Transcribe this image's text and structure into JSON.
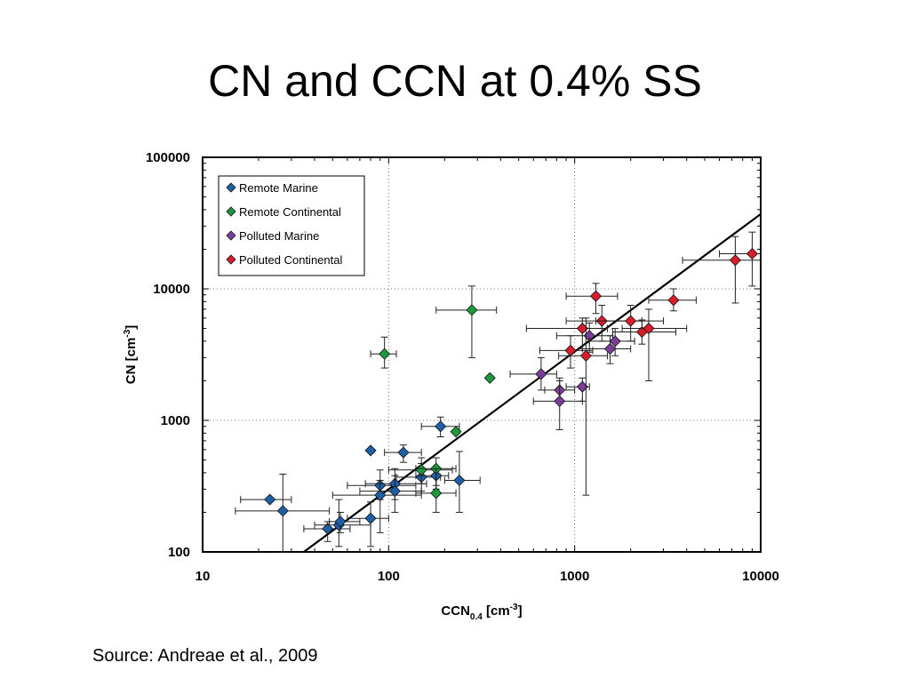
{
  "slide": {
    "title": "CN and CCN at 0.4% SS",
    "source": "Source:  Andreae et al., 2009"
  },
  "chart_data": {
    "type": "scatter",
    "xlabel": "CCN",
    "xlabel_sub": "0.4",
    "xlabel_unit": " [cm",
    "xlabel_sup": "-3",
    "xlabel_end": "]",
    "ylabel": "CN [cm",
    "ylabel_sup": "-3",
    "ylabel_end": "]",
    "xscale": "log",
    "yscale": "log",
    "xlim": [
      10,
      10000
    ],
    "ylim": [
      100,
      100000
    ],
    "x_tick_labels": [
      "10",
      "100",
      "1000",
      "10000"
    ],
    "y_tick_labels": [
      "100",
      "1000",
      "10000",
      "100000"
    ],
    "grid": "dotted at 100 and 1000 (x), 1000 and 10000 (y)",
    "legend_position": "top-left",
    "fit_line": {
      "x": [
        35,
        10000
      ],
      "y": [
        100,
        37000
      ]
    },
    "series": [
      {
        "name": "Remote Marine",
        "color": "#1f5fa8",
        "points": [
          {
            "x": 23,
            "y": 250,
            "xerr": [
              16,
              30
            ],
            "yerr": [
              250,
              250
            ]
          },
          {
            "x": 27,
            "y": 205,
            "xerr": [
              15,
              48
            ],
            "yerr": [
              100,
              390
            ]
          },
          {
            "x": 47,
            "y": 150,
            "xerr": [
              35,
              62
            ],
            "yerr": [
              120,
              170
            ]
          },
          {
            "x": 54,
            "y": 160,
            "xerr": [
              40,
              80
            ],
            "yerr": [
              110,
              250
            ]
          },
          {
            "x": 55,
            "y": 170,
            "xerr": [
              48,
              70
            ],
            "yerr": [
              140,
              200
            ]
          },
          {
            "x": 80,
            "y": 180,
            "xerr": [
              60,
              100
            ],
            "yerr": [
              110,
              240
            ]
          },
          {
            "x": 80,
            "y": 590,
            "xerr": [
              80,
              80
            ],
            "yerr": [
              590,
              590
            ]
          },
          {
            "x": 90,
            "y": 320,
            "xerr": [
              60,
              140
            ],
            "yerr": [
              250,
              420
            ]
          },
          {
            "x": 90,
            "y": 270,
            "xerr": [
              50,
              150
            ],
            "yerr": [
              140,
              350
            ]
          },
          {
            "x": 108,
            "y": 330,
            "xerr": [
              75,
              160
            ],
            "yerr": [
              250,
              430
            ]
          },
          {
            "x": 108,
            "y": 290,
            "xerr": [
              70,
              150
            ],
            "yerr": [
              200,
              380
            ]
          },
          {
            "x": 120,
            "y": 570,
            "xerr": [
              95,
              150
            ],
            "yerr": [
              480,
              650
            ]
          },
          {
            "x": 150,
            "y": 370,
            "xerr": [
              110,
              190
            ],
            "yerr": [
              290,
              470
            ]
          },
          {
            "x": 180,
            "y": 380,
            "xerr": [
              140,
              210
            ],
            "yerr": [
              320,
              430
            ]
          },
          {
            "x": 190,
            "y": 900,
            "xerr": [
              150,
              240
            ],
            "yerr": [
              750,
              1060
            ]
          },
          {
            "x": 240,
            "y": 350,
            "xerr": [
              200,
              310
            ],
            "yerr": [
              200,
              580
            ]
          }
        ]
      },
      {
        "name": "Remote Continental",
        "color": "#1a9a3c",
        "points": [
          {
            "x": 95,
            "y": 3200,
            "xerr": [
              80,
              110
            ],
            "yerr": [
              2500,
              4300
            ]
          },
          {
            "x": 150,
            "y": 420,
            "xerr": [
              100,
              220
            ],
            "yerr": [
              330,
              520
            ]
          },
          {
            "x": 180,
            "y": 430,
            "xerr": [
              140,
              230
            ],
            "yerr": [
              300,
              520
            ]
          },
          {
            "x": 180,
            "y": 280,
            "xerr": [
              140,
              230
            ],
            "yerr": [
              200,
              430
            ]
          },
          {
            "x": 230,
            "y": 820,
            "xerr": [
              230,
              230
            ],
            "yerr": [
              820,
              820
            ]
          },
          {
            "x": 280,
            "y": 6900,
            "xerr": [
              180,
              380
            ],
            "yerr": [
              3000,
              10500
            ]
          },
          {
            "x": 350,
            "y": 2100,
            "xerr": [
              350,
              350
            ],
            "yerr": [
              2100,
              2100
            ]
          }
        ]
      },
      {
        "name": "Polluted Marine",
        "color": "#7a3d9a",
        "points": [
          {
            "x": 660,
            "y": 2250,
            "xerr": [
              450,
              800
            ],
            "yerr": [
              1700,
              3000
            ]
          },
          {
            "x": 830,
            "y": 1700,
            "xerr": [
              690,
              1000
            ],
            "yerr": [
              1400,
              2000
            ]
          },
          {
            "x": 830,
            "y": 1400,
            "xerr": [
              600,
              1100
            ],
            "yerr": [
              850,
              2100
            ]
          },
          {
            "x": 1100,
            "y": 1800,
            "xerr": [
              900,
              1200
            ],
            "yerr": [
              1400,
              2100
            ]
          },
          {
            "x": 1200,
            "y": 4400,
            "xerr": [
              800,
              1600
            ],
            "yerr": [
              3300,
              5500
            ]
          },
          {
            "x": 1550,
            "y": 3500,
            "xerr": [
              1100,
              2000
            ],
            "yerr": [
              2700,
              4400
            ]
          },
          {
            "x": 1650,
            "y": 4000,
            "xerr": [
              1200,
              2100
            ],
            "yerr": [
              3100,
              5000
            ]
          }
        ]
      },
      {
        "name": "Polluted Continental",
        "color": "#d81e2a",
        "points": [
          {
            "x": 950,
            "y": 3400,
            "xerr": [
              650,
              1250
            ],
            "yerr": [
              2500,
              4400
            ]
          },
          {
            "x": 1100,
            "y": 5000,
            "xerr": [
              550,
              1500
            ],
            "yerr": [
              3500,
              6000
            ]
          },
          {
            "x": 1150,
            "y": 3100,
            "xerr": [
              820,
              1500
            ],
            "yerr": [
              270,
              6000
            ]
          },
          {
            "x": 1300,
            "y": 8800,
            "xerr": [
              900,
              1700
            ],
            "yerr": [
              6500,
              11000
            ]
          },
          {
            "x": 1400,
            "y": 5700,
            "xerr": [
              900,
              2300
            ],
            "yerr": [
              4000,
              7500
            ]
          },
          {
            "x": 2000,
            "y": 5700,
            "xerr": [
              1300,
              3000
            ],
            "yerr": [
              4000,
              7500
            ]
          },
          {
            "x": 2300,
            "y": 4700,
            "xerr": [
              1600,
              3500
            ],
            "yerr": [
              3800,
              5800
            ]
          },
          {
            "x": 2500,
            "y": 5000,
            "xerr": [
              1800,
              4000
            ],
            "yerr": [
              2000,
              7000
            ]
          },
          {
            "x": 3400,
            "y": 8200,
            "xerr": [
              2500,
              4500
            ],
            "yerr": [
              6800,
              10000
            ]
          },
          {
            "x": 7300,
            "y": 16500,
            "xerr": [
              3800,
              10000
            ],
            "yerr": [
              7800,
              25000
            ]
          },
          {
            "x": 9000,
            "y": 18500,
            "xerr": [
              6000,
              10000
            ],
            "yerr": [
              10500,
              27000
            ]
          }
        ]
      }
    ]
  }
}
